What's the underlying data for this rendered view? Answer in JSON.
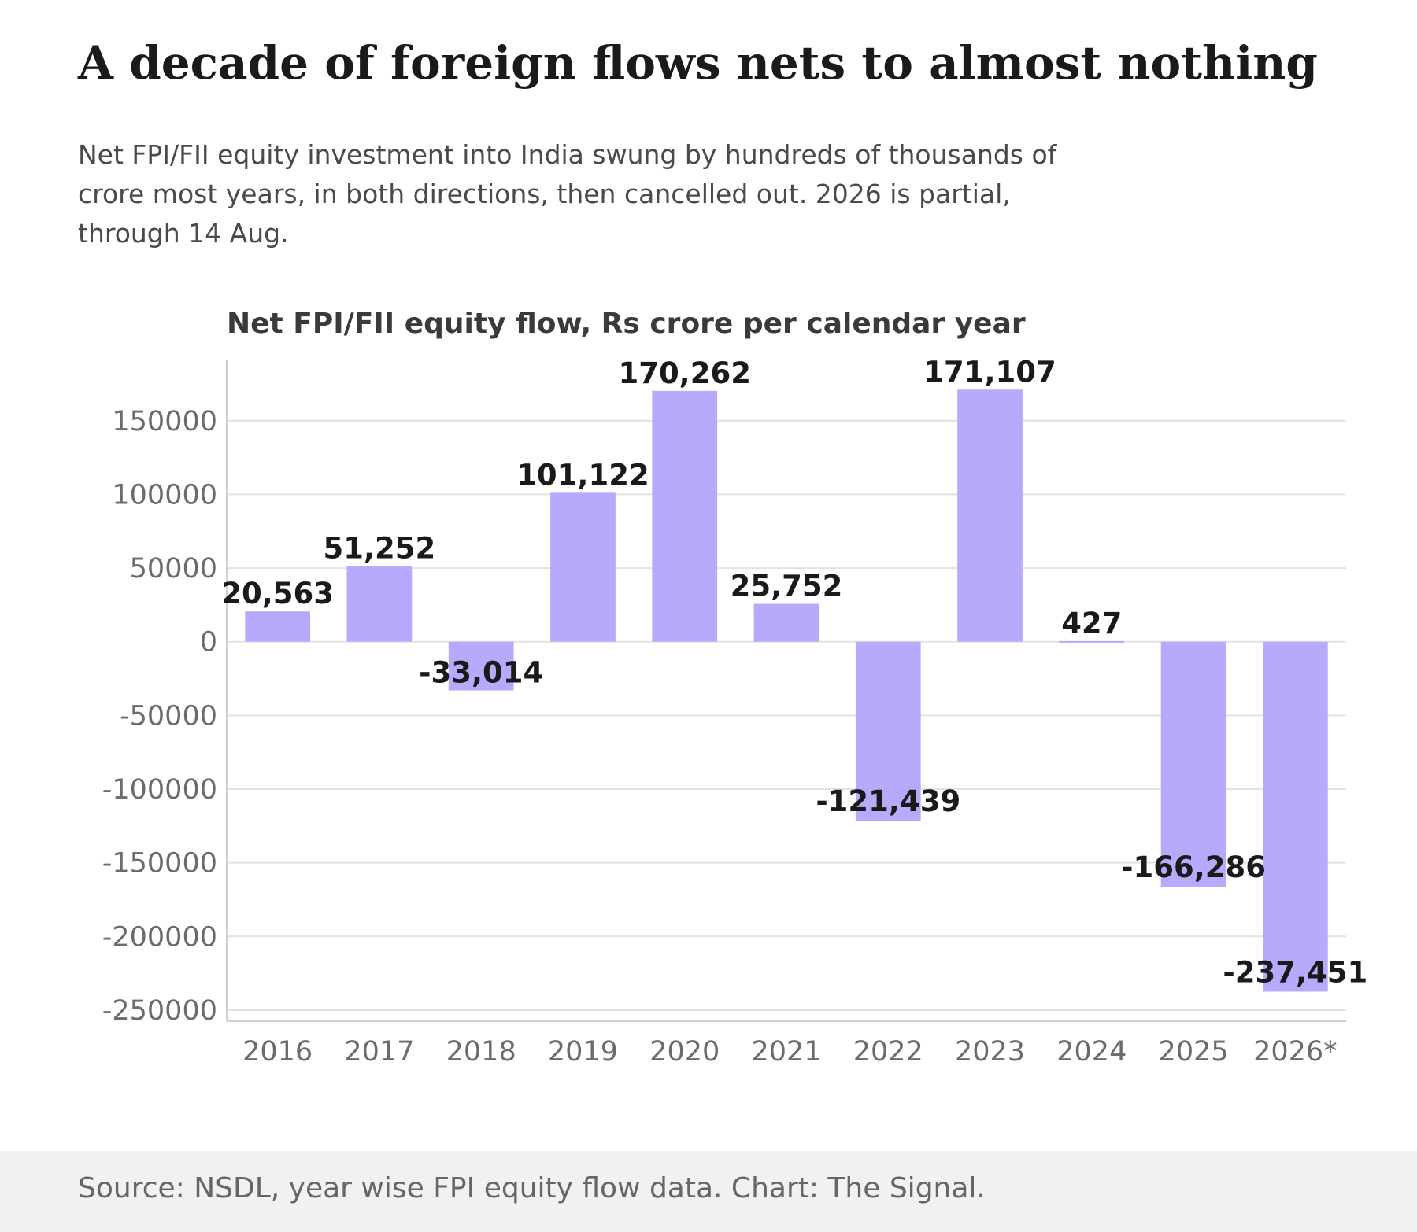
{
  "header": {
    "title": "A decade of foreign flows nets to almost nothing",
    "subtitle": "Net FPI/FII equity investment into India swung by hundreds of thousands of crore most years, in both directions, then cancelled out. 2026 is partial, through 14 Aug."
  },
  "footer": {
    "source": "Source: NSDL, year wise FPI equity flow data. Chart: The Signal."
  },
  "chart_data": {
    "type": "bar",
    "title": "Net FPI/FII equity flow, Rs crore per calendar year",
    "xlabel": "",
    "ylabel": "",
    "categories": [
      "2016",
      "2017",
      "2018",
      "2019",
      "2020",
      "2021",
      "2022",
      "2023",
      "2024",
      "2025",
      "2026*"
    ],
    "values": [
      20563,
      51252,
      -33014,
      101122,
      170262,
      25752,
      -121439,
      171107,
      427,
      -166286,
      -237451
    ],
    "data_labels": [
      "20,563",
      "51,252",
      "-33,014",
      "101,122",
      "170,262",
      "25,752",
      "-121,439",
      "171,107",
      "427",
      "-166,286",
      "-237,451"
    ],
    "ylim": [
      -257500,
      191000
    ],
    "yticks": [
      150000,
      100000,
      50000,
      0,
      -50000,
      -100000,
      -150000,
      -200000,
      -250000
    ],
    "ytick_labels": [
      "150000",
      "100000",
      "50000",
      "0",
      "-50000",
      "-100000",
      "-150000",
      "-200000",
      "-250000"
    ],
    "grid": true,
    "legend": "none",
    "bar_color": "#b8a9fc"
  }
}
